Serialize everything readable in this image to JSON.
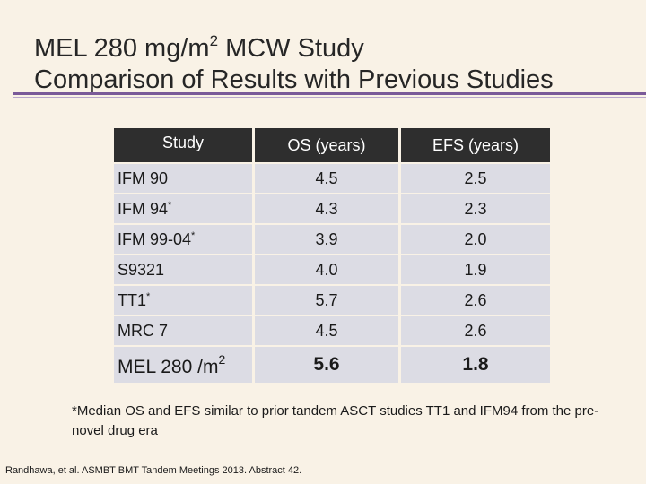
{
  "title": {
    "line1_prefix": "MEL 280 mg/m",
    "line1_sup": "2",
    "line1_suffix": " MCW Study",
    "line2": "Comparison of Results with Previous Studies"
  },
  "table": {
    "headers": [
      "Study",
      "OS (years)",
      "EFS (years)"
    ],
    "rows": [
      {
        "study": "IFM 90",
        "mark": "",
        "os": "4.5",
        "efs": "2.5"
      },
      {
        "study": "IFM 94",
        "mark": "*",
        "os": "4.3",
        "efs": "2.3"
      },
      {
        "study": "IFM 99-04",
        "mark": "*",
        "os": "3.9",
        "efs": "2.0"
      },
      {
        "study": "S9321",
        "mark": "",
        "os": "4.0",
        "efs": "1.9"
      },
      {
        "study": "TT1",
        "mark": "*",
        "os": "5.7",
        "efs": "2.6"
      },
      {
        "study": "MRC 7",
        "mark": "",
        "os": "4.5",
        "efs": "2.6"
      },
      {
        "study": "MEL 280 /m",
        "mark": "2",
        "os": "5.6",
        "efs": "1.8"
      }
    ]
  },
  "footnote": "*Median OS and EFS similar to prior tandem ASCT studies TT1 and IFM94 from the pre-novel drug era",
  "citation": "Randhawa, et al. ASMBT BMT Tandem Meetings 2013. Abstract 42."
}
